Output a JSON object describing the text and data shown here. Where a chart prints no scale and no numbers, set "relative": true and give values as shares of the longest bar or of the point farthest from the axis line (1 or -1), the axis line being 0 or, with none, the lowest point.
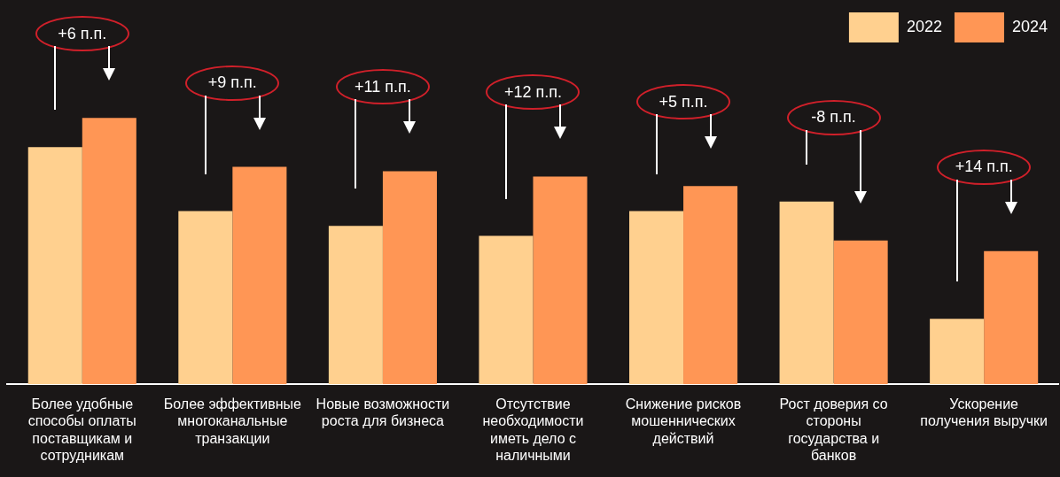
{
  "chart_data": {
    "type": "bar",
    "relative": true,
    "legend": "top right",
    "categories": [
      "Более удобные способы оплаты поставщикам и сотрудникам",
      "Более эффективные многоканальные транзакции",
      "Новые возможности роста для бизнеса",
      "Отсутствие необходимости иметь дело с наличными",
      "Снижение рисков мошеннических действий",
      "Рост доверия со стороны государства и банков",
      "Ускорение получения выручки"
    ],
    "series": [
      {
        "name": "2022",
        "color": "#ffd08f",
        "values": [
          0.89,
          0.65,
          0.595,
          0.557,
          0.65,
          0.686,
          0.246
        ]
      },
      {
        "name": "2024",
        "color": "#ff9655",
        "values": [
          1,
          0.816,
          0.8,
          0.78,
          0.744,
          0.54,
          0.5
        ]
      }
    ],
    "annotations": [
      "+6 п.п.",
      "+9 п.п.",
      "+11 п.п.",
      "+12 п.п.",
      "+5 п.п.",
      "-8 п.п.",
      "+14 п.п."
    ]
  }
}
